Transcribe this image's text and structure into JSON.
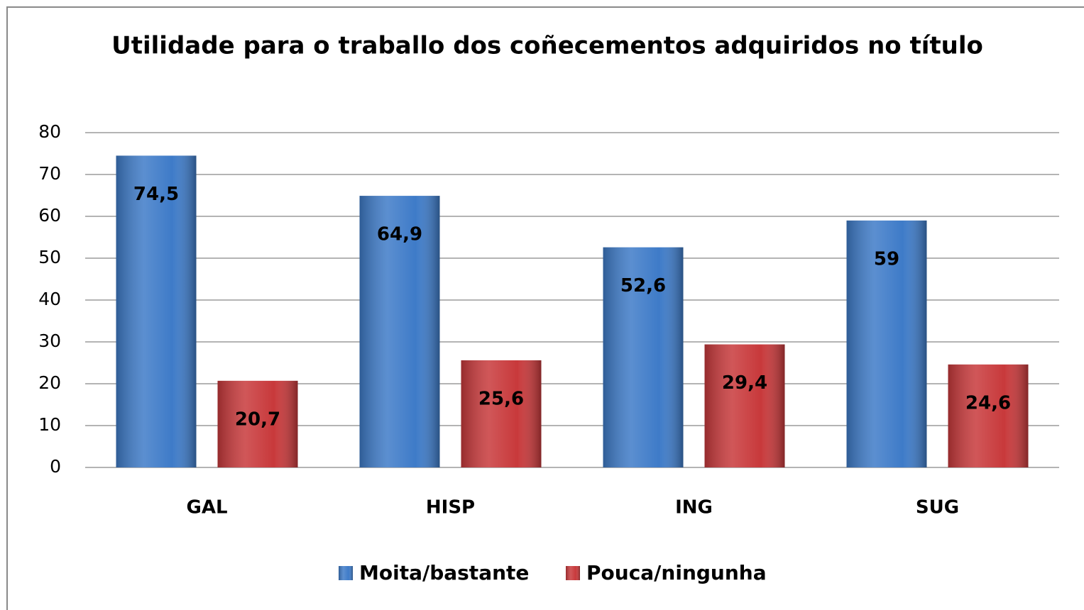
{
  "chart_data": {
    "type": "bar",
    "title": "Utilidade para o traballo dos coñecementos adquiridos no título",
    "categories": [
      "GAL",
      "HISP",
      "ING",
      "SUG"
    ],
    "series": [
      {
        "name": "Moita/bastante",
        "color": "#3e7bc8",
        "values": [
          74.5,
          64.9,
          52.6,
          59
        ],
        "value_labels": [
          "74,5",
          "64,9",
          "52,6",
          "59"
        ]
      },
      {
        "name": "Pouca/ningunha",
        "color": "#c8393b",
        "values": [
          20.7,
          25.6,
          29.4,
          24.6
        ],
        "value_labels": [
          "20,7",
          "25,6",
          "29,4",
          "24,6"
        ]
      }
    ],
    "ylim": [
      0,
      80
    ],
    "yticks": [
      0,
      10,
      20,
      30,
      40,
      50,
      60,
      70,
      80
    ],
    "grid": true,
    "legend": "bottom"
  }
}
